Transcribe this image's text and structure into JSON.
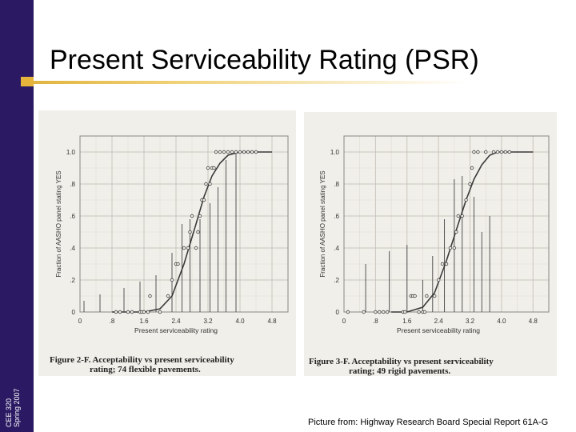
{
  "slide": {
    "title": "Present Serviceability Rating (PSR)",
    "sidebar_course": "CEE 320",
    "sidebar_term": "Spring 2007",
    "credit": "Picture from: Highway Research Board Special Report 61A-G",
    "colors": {
      "sidebar": "#2b1a63",
      "accent": "#e6b43a",
      "figure_bg": "#f1efe9",
      "ink": "#333333"
    }
  },
  "chart_data": [
    {
      "type": "scatter",
      "ylabel": "Fraction of AASHO panel stating YES",
      "xlabel": "Present serviceability rating",
      "xticks": [
        "0",
        ".8",
        "1.6",
        "2.4",
        "3.2",
        "4.0",
        "4.8"
      ],
      "yticks": [
        "0",
        ".2",
        ".4",
        ".6",
        ".8",
        "1.0"
      ],
      "caption_line1": "Figure 2-F. Acceptability vs present serviceability",
      "caption_line2": "rating; 74 flexible pavements.",
      "xlim": [
        0,
        5.2
      ],
      "ylim": [
        0,
        1.1
      ],
      "curve": {
        "x": [
          0.8,
          1.6,
          2.0,
          2.3,
          2.6,
          2.9,
          3.1,
          3.3,
          3.5,
          3.7,
          4.0,
          4.4,
          4.8
        ],
        "y": [
          0,
          0,
          0.02,
          0.1,
          0.3,
          0.55,
          0.72,
          0.85,
          0.93,
          0.98,
          1.0,
          1.0,
          1.0
        ]
      },
      "bars": {
        "x": [
          0.1,
          0.5,
          1.1,
          1.5,
          1.9,
          2.3,
          2.55,
          2.75,
          3.0,
          3.25,
          3.45,
          3.65,
          3.9
        ],
        "y": [
          0.07,
          0.11,
          0.15,
          0.19,
          0.23,
          0.37,
          0.55,
          0.58,
          0.58,
          0.68,
          0.78,
          0.95,
          1.0
        ]
      },
      "points": {
        "x": [
          0.9,
          1.0,
          1.2,
          1.3,
          1.5,
          1.55,
          1.6,
          1.7,
          1.75,
          2.0,
          2.2,
          2.3,
          2.4,
          2.45,
          2.6,
          2.7,
          2.75,
          2.8,
          2.9,
          2.95,
          3.0,
          3.05,
          3.1,
          3.15,
          3.2,
          3.25,
          3.3,
          3.35,
          3.4,
          3.5,
          3.6,
          3.7,
          3.8,
          3.9,
          4.0,
          4.1,
          4.2,
          4.3,
          4.4
        ],
        "y": [
          0,
          0,
          0,
          0,
          0,
          0,
          0,
          0,
          0.1,
          0,
          0.1,
          0.2,
          0.3,
          0.3,
          0.4,
          0.4,
          0.5,
          0.6,
          0.4,
          0.5,
          0.6,
          0.7,
          0.7,
          0.8,
          0.9,
          0.8,
          0.9,
          0.9,
          1.0,
          1.0,
          1.0,
          1.0,
          1.0,
          1.0,
          1.0,
          1.0,
          1.0,
          1.0,
          1.0
        ]
      }
    },
    {
      "type": "scatter",
      "ylabel": "Fraction of AASHO panel stating YES",
      "xlabel": "Present serviceability rating",
      "xticks": [
        "0",
        ".8",
        "1.6",
        "2.4",
        "3.2",
        "4.0",
        "4.8"
      ],
      "yticks": [
        "0",
        ".2",
        ".4",
        ".6",
        ".8",
        "1.0"
      ],
      "caption_line1": "Figure 3-F. Acceptability vs present serviceability",
      "caption_line2": "rating; 49 rigid pavements.",
      "xlim": [
        0,
        5.2
      ],
      "ylim": [
        0,
        1.1
      ],
      "curve": {
        "x": [
          1.2,
          1.6,
          2.0,
          2.3,
          2.6,
          2.9,
          3.1,
          3.3,
          3.5,
          3.7,
          3.9,
          4.2,
          4.8
        ],
        "y": [
          0,
          0,
          0.03,
          0.12,
          0.32,
          0.55,
          0.7,
          0.83,
          0.92,
          0.98,
          1.0,
          1.0,
          1.0
        ]
      },
      "bars": {
        "x": [
          0.55,
          1.15,
          1.6,
          2.0,
          2.25,
          2.55,
          2.8,
          3.0,
          3.3,
          3.5,
          3.7
        ],
        "y": [
          0.3,
          0.38,
          0.42,
          0.2,
          0.35,
          0.58,
          0.83,
          0.85,
          0.72,
          0.5,
          0.6
        ]
      },
      "points": {
        "x": [
          0.1,
          0.5,
          0.8,
          0.9,
          1.0,
          1.1,
          1.5,
          1.55,
          1.7,
          1.75,
          1.8,
          1.9,
          2.0,
          2.05,
          2.1,
          2.3,
          2.4,
          2.5,
          2.6,
          2.7,
          2.8,
          2.85,
          2.9,
          3.0,
          3.1,
          3.2,
          3.25,
          3.3,
          3.4,
          3.6,
          3.8,
          3.9,
          4.0,
          4.1,
          4.2
        ],
        "y": [
          0,
          0,
          0,
          0,
          0,
          0,
          0,
          0,
          0.1,
          0.1,
          0.1,
          0,
          0,
          0,
          0.1,
          0.1,
          0.2,
          0.3,
          0.3,
          0.4,
          0.4,
          0.5,
          0.6,
          0.6,
          0.7,
          0.8,
          0.9,
          1.0,
          1.0,
          1.0,
          1.0,
          1.0,
          1.0,
          1.0,
          1.0
        ]
      }
    }
  ]
}
